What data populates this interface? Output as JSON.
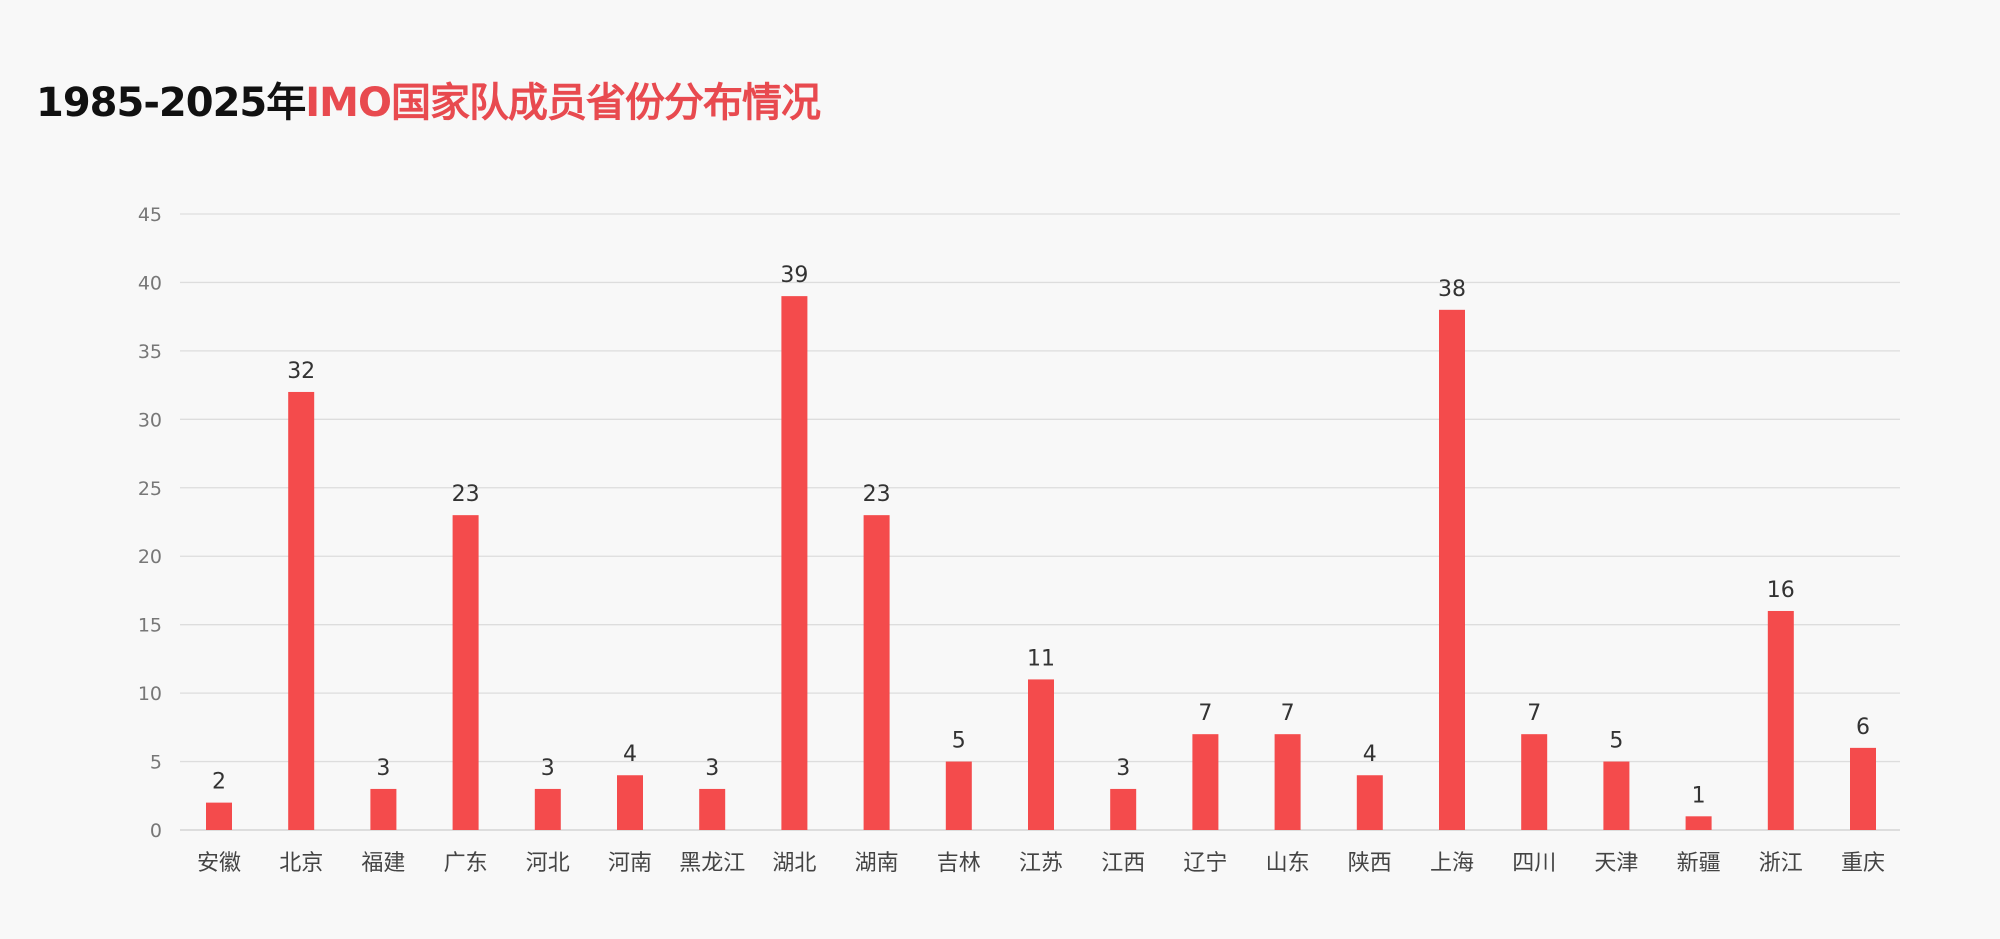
{
  "title": {
    "prefix": "1985-2025年",
    "highlight": "IMO国家队成员省份分布情况"
  },
  "colors": {
    "bar": "#f44b4c",
    "title_accent": "#e84a4f",
    "grid": "#dddddd"
  },
  "chart_data": {
    "type": "bar",
    "title": "1985-2025年IMO国家队成员省份分布情况",
    "categories": [
      "安徽",
      "北京",
      "福建",
      "广东",
      "河北",
      "河南",
      "黑龙江",
      "湖北",
      "湖南",
      "吉林",
      "江苏",
      "江西",
      "辽宁",
      "山东",
      "陕西",
      "上海",
      "四川",
      "天津",
      "新疆",
      "浙江",
      "重庆"
    ],
    "values": [
      2,
      32,
      3,
      23,
      3,
      4,
      3,
      39,
      23,
      5,
      11,
      3,
      7,
      7,
      4,
      38,
      7,
      5,
      1,
      16,
      6
    ],
    "xlabel": "",
    "ylabel": "",
    "ylim": [
      0,
      45
    ],
    "yticks": [
      0,
      5,
      10,
      15,
      20,
      25,
      30,
      35,
      40,
      45
    ],
    "grid": true,
    "data_labels": true
  }
}
